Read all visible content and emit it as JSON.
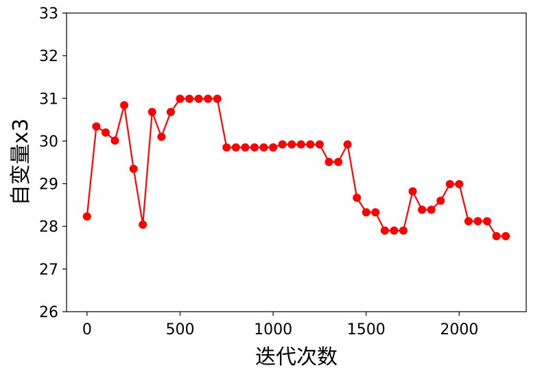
{
  "chart_data": {
    "type": "line",
    "title": "",
    "xlabel": "迭代次数",
    "ylabel": "自变量x3",
    "xlim": [
      -110,
      2360
    ],
    "ylim": [
      26,
      33
    ],
    "xticks": [
      0,
      500,
      1000,
      1500,
      2000
    ],
    "yticks": [
      26,
      27,
      28,
      29,
      30,
      31,
      32,
      33
    ],
    "grid": false,
    "line_color": "#ff0000",
    "marker": "circle",
    "series": [
      {
        "x": [
          0,
          50,
          100,
          150,
          200,
          250,
          300,
          350,
          400,
          450,
          500,
          550,
          600,
          650,
          700,
          750,
          800,
          850,
          900,
          950,
          1000,
          1050,
          1100,
          1150,
          1200,
          1250,
          1300,
          1350,
          1400,
          1450,
          1500,
          1550,
          1600,
          1650,
          1700,
          1750,
          1800,
          1850,
          1900,
          1950,
          2000,
          2050,
          2100,
          2150,
          2200,
          2250
        ],
        "values": [
          28.23,
          30.34,
          30.2,
          30.01,
          30.84,
          29.35,
          28.04,
          30.68,
          30.1,
          30.68,
          30.99,
          30.99,
          30.99,
          30.99,
          30.99,
          29.85,
          29.85,
          29.85,
          29.85,
          29.85,
          29.85,
          29.92,
          29.92,
          29.92,
          29.92,
          29.92,
          29.51,
          29.51,
          29.92,
          28.67,
          28.33,
          28.33,
          27.9,
          27.9,
          27.9,
          28.82,
          28.39,
          28.39,
          28.6,
          28.99,
          28.99,
          28.12,
          28.12,
          28.12,
          27.77,
          27.77
        ]
      }
    ]
  }
}
